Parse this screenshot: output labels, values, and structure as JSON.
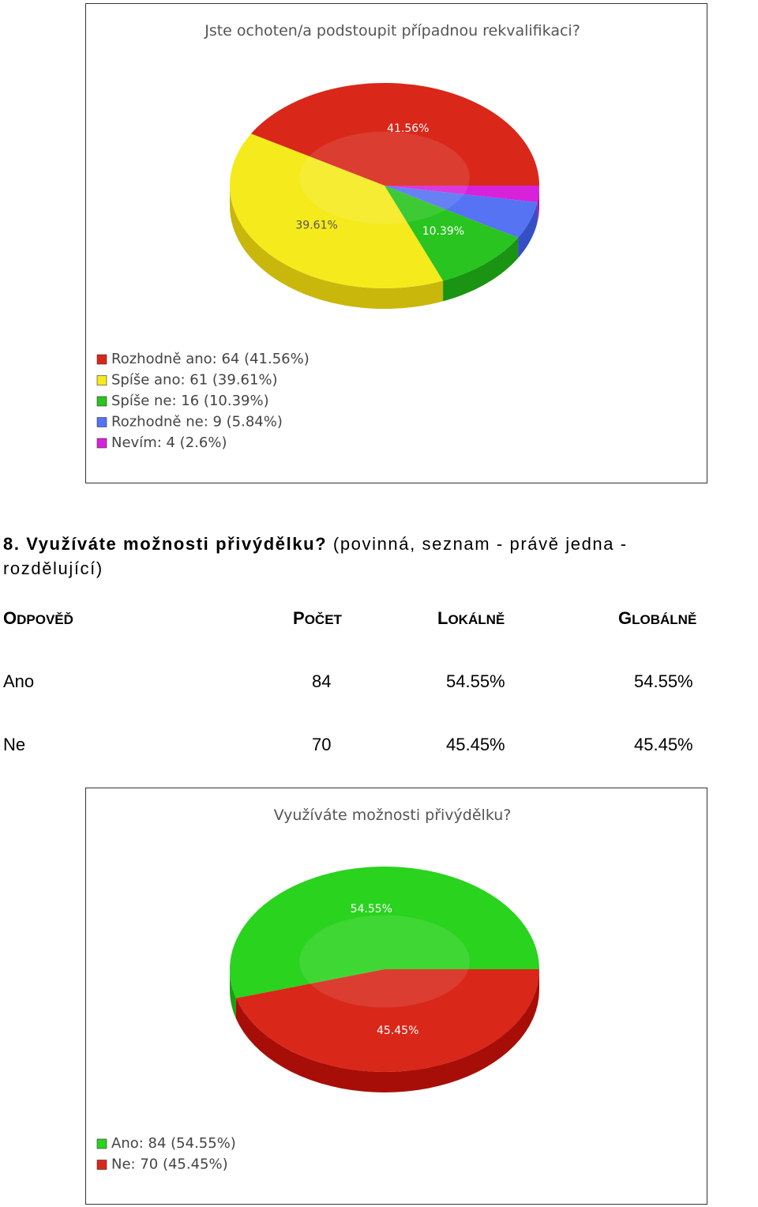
{
  "question": {
    "title": "8. Využíváte možnosti přivýdělku?",
    "meta_line1": " (povinná, seznam - právě jedna -",
    "meta_line2": "rozdělující)"
  },
  "table": {
    "headers": [
      {
        "first": "O",
        "rest": "DPOVĚĎ"
      },
      {
        "first": "P",
        "rest": "OČET"
      },
      {
        "first": "L",
        "rest": "OKÁLNĚ"
      },
      {
        "first": "G",
        "rest": "LOBÁLNĚ"
      }
    ],
    "rows": [
      {
        "answer": "Ano",
        "count": "84",
        "local": "54.55%",
        "global": "54.55%"
      },
      {
        "answer": "Ne",
        "count": "70",
        "local": "45.45%",
        "global": "45.45%"
      }
    ]
  },
  "chart_data": [
    {
      "type": "pie",
      "title": "Jste ochoten/a podstoupit případnou rekvalifikaci?",
      "slices": [
        {
          "label": "Rozhodně ano",
          "value": 64,
          "percent": 41.56,
          "percent_label": "41.56%",
          "legend": "Rozhodně ano: 64 (41.56%)",
          "color": "#d9271a",
          "side": "#a80e08"
        },
        {
          "label": "Spíše ano",
          "value": 61,
          "percent": 39.61,
          "percent_label": "39.61%",
          "legend": "Spíše ano: 61 (39.61%)",
          "color": "#f5ea1c",
          "side": "#c9b70c"
        },
        {
          "label": "Spíše ne",
          "value": 16,
          "percent": 10.39,
          "percent_label": "10.39%",
          "legend": "Spíše ne: 16 (10.39%)",
          "color": "#29c41f",
          "side": "#1a9412"
        },
        {
          "label": "Rozhodně ne",
          "value": 9,
          "percent": 5.84,
          "percent_label": "",
          "legend": "Rozhodně ne: 9 (5.84%)",
          "color": "#5573f2",
          "side": "#3550c4"
        },
        {
          "label": "Nevím",
          "value": 4,
          "percent": 2.6,
          "percent_label": "",
          "legend": "Nevím: 4 (2.6%)",
          "color": "#d623d9",
          "side": "#a818ab"
        }
      ],
      "legend_position": "bottom-left"
    },
    {
      "type": "pie",
      "title": "Využíváte možnosti přivýdělku?",
      "slices": [
        {
          "label": "Ano",
          "value": 84,
          "percent": 54.55,
          "percent_label": "54.55%",
          "legend": "Ano: 84 (54.55%)",
          "color": "#2ad31e",
          "side": "#19a010"
        },
        {
          "label": "Ne",
          "value": 70,
          "percent": 45.45,
          "percent_label": "45.45%",
          "legend": "Ne: 70 (45.45%)",
          "color": "#d9271a",
          "side": "#a80e08"
        }
      ],
      "legend_position": "bottom-left"
    }
  ]
}
